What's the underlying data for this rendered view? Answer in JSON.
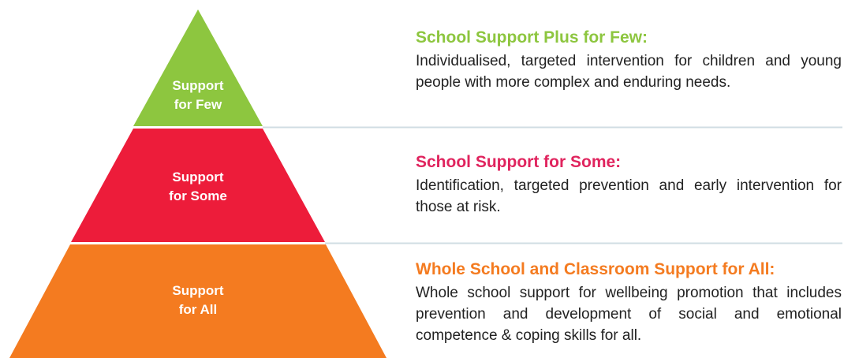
{
  "tiers": [
    {
      "label_lines": [
        "Support",
        "for Few"
      ],
      "title": "School Support Plus for Few:",
      "text": "Individualised, targeted intervention for children and young people with more complex and enduring needs."
    },
    {
      "label_lines": [
        "Support",
        "for Some"
      ],
      "title": "School Support for Some:",
      "text": "Identification, targeted prevention and early intervention for those at risk."
    },
    {
      "label_lines": [
        "Support",
        "for All"
      ],
      "title": "Whole School and Classroom Support for All:",
      "text": "Whole school support for wellbeing promotion that includes prevention and development of social and emotional competence & coping skills for all."
    }
  ]
}
